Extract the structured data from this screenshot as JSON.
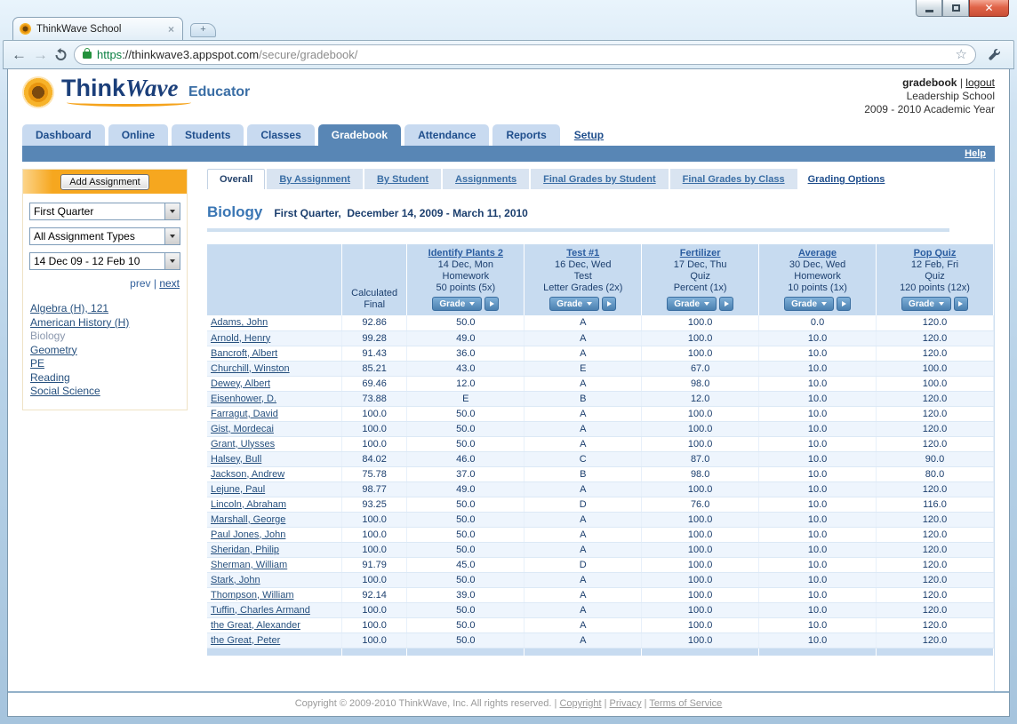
{
  "browser": {
    "tab_title": "ThinkWave School",
    "tab_close": "×",
    "new_tab": "+",
    "url_scheme": "https",
    "url_host": "://thinkwave3.appspot.com",
    "url_path": "/secure/gradebook/",
    "star": "☆",
    "back": "←",
    "forward": "→",
    "close_button": "✕"
  },
  "header": {
    "logo_think": "Think",
    "logo_wave": "Wave",
    "logo_product": "Educator",
    "user_label": "gradebook",
    "separator": "|",
    "logout_label": "logout",
    "school": "Leadership School",
    "academic_year": "2009 - 2010 Academic Year"
  },
  "nav": {
    "tabs": [
      "Dashboard",
      "Online",
      "Students",
      "Classes",
      "Gradebook",
      "Attendance",
      "Reports"
    ],
    "active": "Gradebook",
    "setup_label": "Setup",
    "help_label": "Help"
  },
  "sidebar": {
    "add_assignment_label": "Add Assignment",
    "filters": [
      {
        "id": "term-select",
        "value": "First Quarter"
      },
      {
        "id": "assignment-type-select",
        "value": "All Assignment Types"
      },
      {
        "id": "date-range-select",
        "value": "14 Dec 09 - 12 Feb 10"
      }
    ],
    "prev_label": "prev",
    "separator": "|",
    "next_label": "next",
    "classes": [
      "Algebra (H), 121",
      "American History (H)",
      "Biology",
      "Geometry",
      "PE",
      "Reading",
      "Social Science"
    ],
    "active_class": "Biology"
  },
  "subtabs": {
    "labels": [
      "Overall",
      "By Assignment",
      "By Student",
      "Assignments",
      "Final Grades by Student",
      "Final Grades by Class"
    ],
    "active": "Overall",
    "grading_options_label": "Grading Options"
  },
  "page_title": {
    "class_name": "Biology",
    "term_range": "First Quarter,  December 14, 2009 - March 11, 2010"
  },
  "table": {
    "calc_final": [
      "Calculated",
      "Final"
    ],
    "grade_button_label": "Grade",
    "assignments": [
      {
        "name": "Identify Plants 2",
        "date": "14 Dec, Mon",
        "type": "Homework",
        "scale": "50 points (5x)"
      },
      {
        "name": "Test #1",
        "date": "16 Dec, Wed",
        "type": "Test",
        "scale": "Letter Grades (2x)"
      },
      {
        "name": "Fertilizer",
        "date": "17 Dec, Thu",
        "type": "Quiz",
        "scale": "Percent (1x)"
      },
      {
        "name": "Average",
        "date": "30 Dec, Wed",
        "type": "Homework",
        "scale": "10 points (1x)"
      },
      {
        "name": "Pop Quiz",
        "date": "12 Feb, Fri",
        "type": "Quiz",
        "scale": "120 points (12x)"
      }
    ],
    "rows": [
      {
        "student": "Adams, John",
        "final": "92.86",
        "grades": [
          "50.0",
          "A",
          "100.0",
          "0.0",
          "120.0"
        ]
      },
      {
        "student": "Arnold, Henry",
        "final": "99.28",
        "grades": [
          "49.0",
          "A",
          "100.0",
          "10.0",
          "120.0"
        ]
      },
      {
        "student": "Bancroft, Albert",
        "final": "91.43",
        "grades": [
          "36.0",
          "A",
          "100.0",
          "10.0",
          "120.0"
        ]
      },
      {
        "student": "Churchill, Winston",
        "final": "85.21",
        "grades": [
          "43.0",
          "E",
          "67.0",
          "10.0",
          "100.0"
        ]
      },
      {
        "student": "Dewey, Albert",
        "final": "69.46",
        "grades": [
          "12.0",
          "A",
          "98.0",
          "10.0",
          "100.0"
        ]
      },
      {
        "student": "Eisenhower, D.",
        "final": "73.88",
        "grades": [
          "E",
          "B",
          "12.0",
          "10.0",
          "120.0"
        ]
      },
      {
        "student": "Farragut, David",
        "final": "100.0",
        "grades": [
          "50.0",
          "A",
          "100.0",
          "10.0",
          "120.0"
        ]
      },
      {
        "student": "Gist, Mordecai",
        "final": "100.0",
        "grades": [
          "50.0",
          "A",
          "100.0",
          "10.0",
          "120.0"
        ]
      },
      {
        "student": "Grant, Ulysses",
        "final": "100.0",
        "grades": [
          "50.0",
          "A",
          "100.0",
          "10.0",
          "120.0"
        ]
      },
      {
        "student": "Halsey, Bull",
        "final": "84.02",
        "grades": [
          "46.0",
          "C",
          "87.0",
          "10.0",
          "90.0"
        ]
      },
      {
        "student": "Jackson, Andrew",
        "final": "75.78",
        "grades": [
          "37.0",
          "B",
          "98.0",
          "10.0",
          "80.0"
        ]
      },
      {
        "student": "Lejune, Paul",
        "final": "98.77",
        "grades": [
          "49.0",
          "A",
          "100.0",
          "10.0",
          "120.0"
        ]
      },
      {
        "student": "Lincoln, Abraham",
        "final": "93.25",
        "grades": [
          "50.0",
          "D",
          "76.0",
          "10.0",
          "116.0"
        ]
      },
      {
        "student": "Marshall, George",
        "final": "100.0",
        "grades": [
          "50.0",
          "A",
          "100.0",
          "10.0",
          "120.0"
        ]
      },
      {
        "student": "Paul Jones, John",
        "final": "100.0",
        "grades": [
          "50.0",
          "A",
          "100.0",
          "10.0",
          "120.0"
        ]
      },
      {
        "student": "Sheridan, Philip",
        "final": "100.0",
        "grades": [
          "50.0",
          "A",
          "100.0",
          "10.0",
          "120.0"
        ]
      },
      {
        "student": "Sherman, William",
        "final": "91.79",
        "grades": [
          "45.0",
          "D",
          "100.0",
          "10.0",
          "120.0"
        ]
      },
      {
        "student": "Stark, John",
        "final": "100.0",
        "grades": [
          "50.0",
          "A",
          "100.0",
          "10.0",
          "120.0"
        ]
      },
      {
        "student": "Thompson, William",
        "final": "92.14",
        "grades": [
          "39.0",
          "A",
          "100.0",
          "10.0",
          "120.0"
        ]
      },
      {
        "student": "Tuffin, Charles Armand",
        "final": "100.0",
        "grades": [
          "50.0",
          "A",
          "100.0",
          "10.0",
          "120.0"
        ]
      },
      {
        "student": "the Great, Alexander",
        "final": "100.0",
        "grades": [
          "50.0",
          "A",
          "100.0",
          "10.0",
          "120.0"
        ]
      },
      {
        "student": "the Great, Peter",
        "final": "100.0",
        "grades": [
          "50.0",
          "A",
          "100.0",
          "10.0",
          "120.0"
        ]
      }
    ]
  },
  "footer": {
    "copyright_text": "Copyright © 2009-2010 ThinkWave, Inc. All rights reserved.",
    "separator": "|",
    "links": [
      "Copyright",
      "Privacy",
      "Terms of Service"
    ]
  },
  "colors": {
    "accent_blue": "#5886b5",
    "accent_orange": "#f6a71f",
    "table_header_bg": "#c7dbf0",
    "link_blue": "#26507e",
    "url_https_green": "#0b8043"
  }
}
